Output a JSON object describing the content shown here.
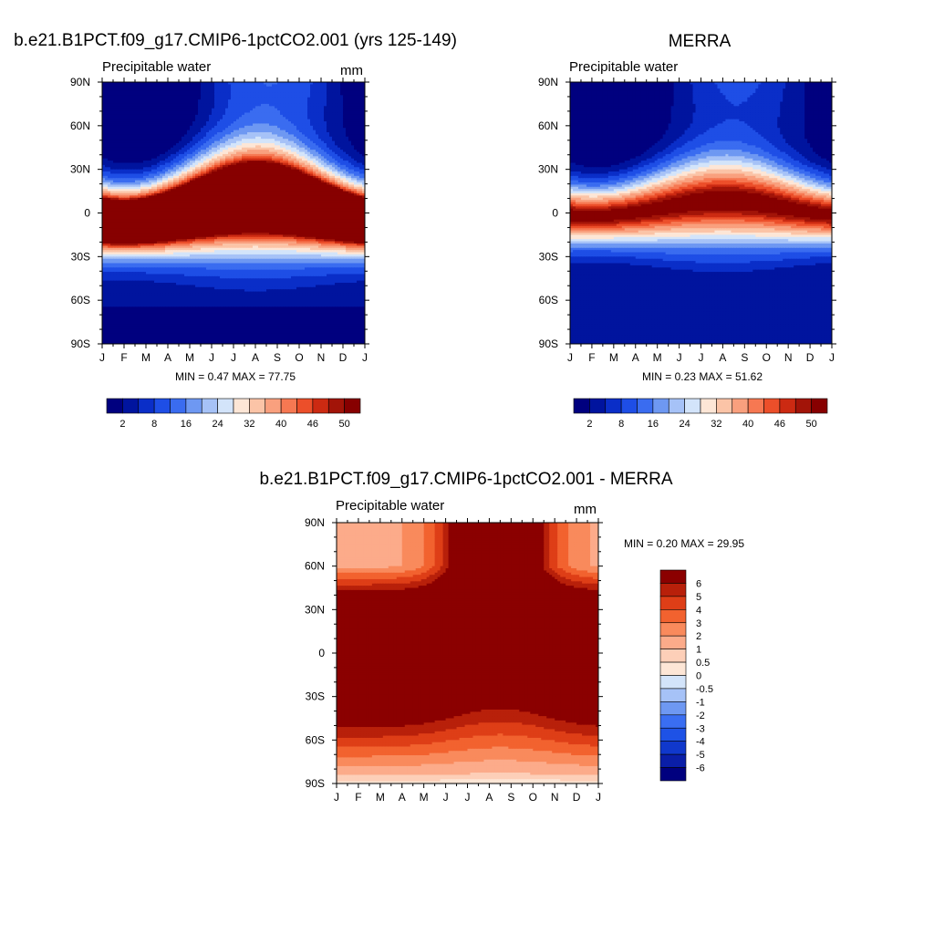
{
  "colors": {
    "abs_palette": [
      "#00007f",
      "#00149e",
      "#0a2ec8",
      "#1e4ee6",
      "#3a6cf0",
      "#6e98f2",
      "#a6c2f7",
      "#d3e4fa",
      "#fde6d6",
      "#fbc4a7",
      "#f9a07e",
      "#f67852",
      "#ec4f2a",
      "#cc2a12",
      "#a21408",
      "#870000"
    ],
    "diff_palette": [
      "#00007f",
      "#0a1ea8",
      "#1038cc",
      "#1e52e6",
      "#3a6ef2",
      "#6e98f2",
      "#a6c2f7",
      "#d3e4fa",
      "#fde6d6",
      "#fdcfb8",
      "#fcab8a",
      "#f98a5c",
      "#f2622f",
      "#de3e17",
      "#b8200a",
      "#8b0000"
    ]
  },
  "panels": {
    "model": {
      "title": "b.e21.B1PCT.f09_g17.CMIP6-1pctCO2.001 (yrs 125-149)",
      "subtitle": "Precipitable water",
      "units": "mm",
      "stats": "MIN =   0.47 MAX =  77.75"
    },
    "merra": {
      "title": "MERRA",
      "subtitle": "Precipitable water",
      "stats": "MIN =   0.23 MAX =  51.62"
    },
    "diff": {
      "title": "b.e21.B1PCT.f09_g17.CMIP6-1pctCO2.001 - MERRA",
      "subtitle": "Precipitable water",
      "units": "mm",
      "stats": "MIN =   0.20 MAX =  29.95"
    }
  },
  "chart_data": [
    {
      "type": "heatmap",
      "title": "b.e21.B1PCT.f09_g17.CMIP6-1pctCO2.001 (yrs 125-149)",
      "subtitle": "Precipitable water",
      "units": "mm",
      "x_ticks": [
        "J",
        "F",
        "M",
        "A",
        "M",
        "J",
        "J",
        "A",
        "S",
        "O",
        "N",
        "D",
        "J"
      ],
      "y_ticks": [
        "90N",
        "60N",
        "30N",
        "0",
        "30S",
        "60S",
        "90S"
      ],
      "x_range": [
        0,
        12
      ],
      "y_range": [
        90,
        -90
      ],
      "field": {
        "kind": "model",
        "min": 0.47,
        "max": 77.75
      },
      "levels": [
        2,
        5,
        8,
        12,
        16,
        20,
        24,
        28,
        32,
        36,
        40,
        43,
        46,
        48,
        50
      ],
      "colorbar_labels": [
        "2",
        "8",
        "16",
        "24",
        "32",
        "40",
        "46",
        "50"
      ],
      "stats": "MIN =   0.47 MAX =  77.75"
    },
    {
      "type": "heatmap",
      "title": "MERRA",
      "subtitle": "Precipitable water",
      "x_ticks": [
        "J",
        "F",
        "M",
        "A",
        "M",
        "J",
        "J",
        "A",
        "S",
        "O",
        "N",
        "D",
        "J"
      ],
      "y_ticks": [
        "90N",
        "60N",
        "30N",
        "0",
        "30S",
        "60S",
        "90S"
      ],
      "x_range": [
        0,
        12
      ],
      "y_range": [
        90,
        -90
      ],
      "field": {
        "kind": "merra",
        "min": 0.23,
        "max": 51.62
      },
      "levels": [
        2,
        5,
        8,
        12,
        16,
        20,
        24,
        28,
        32,
        36,
        40,
        43,
        46,
        48,
        50
      ],
      "colorbar_labels": [
        "2",
        "8",
        "16",
        "24",
        "32",
        "40",
        "46",
        "50"
      ],
      "stats": "MIN =   0.23 MAX =  51.62"
    },
    {
      "type": "heatmap",
      "title": "b.e21.B1PCT.f09_g17.CMIP6-1pctCO2.001 - MERRA",
      "subtitle": "Precipitable water",
      "units": "mm",
      "x_ticks": [
        "J",
        "F",
        "M",
        "A",
        "M",
        "J",
        "J",
        "A",
        "S",
        "O",
        "N",
        "D",
        "J"
      ],
      "y_ticks": [
        "90N",
        "60N",
        "30N",
        "0",
        "30S",
        "60S",
        "90S"
      ],
      "x_range": [
        0,
        12
      ],
      "y_range": [
        90,
        -90
      ],
      "field": {
        "kind": "diff",
        "min": 0.2,
        "max": 29.95
      },
      "levels": [
        -6,
        -5,
        -4,
        -3,
        -2,
        -1,
        -0.5,
        0,
        0.5,
        1,
        2,
        3,
        4,
        5,
        6
      ],
      "colorbar_labels": [
        "6",
        "5",
        "4",
        "3",
        "2",
        "1",
        "0.5",
        "0",
        "-0.5",
        "-1",
        "-2",
        "-3",
        "-4",
        "-5",
        "-6"
      ],
      "stats": "MIN =   0.20 MAX =  29.95"
    }
  ]
}
